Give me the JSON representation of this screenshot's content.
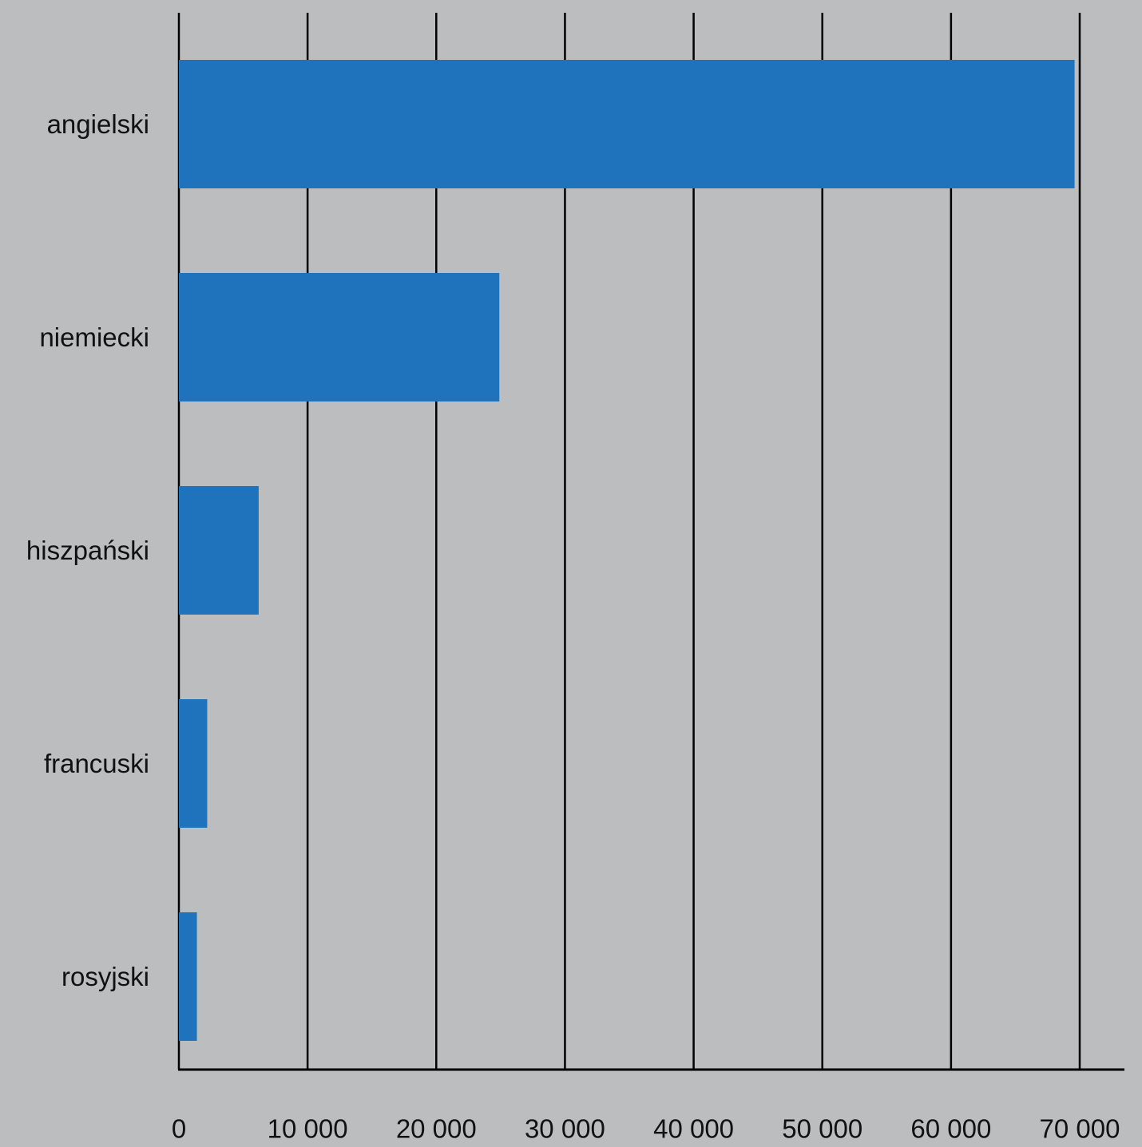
{
  "chart_data": {
    "type": "bar",
    "orientation": "horizontal",
    "categories": [
      "angielski",
      "niemiecki",
      "hiszpański",
      "francuski",
      "rosyjski"
    ],
    "values": [
      69600,
      24900,
      6200,
      2200,
      1400
    ],
    "xlim": [
      0,
      70000
    ],
    "xticks": [
      0,
      10000,
      20000,
      30000,
      40000,
      50000,
      60000,
      70000
    ],
    "xtick_labels": [
      "0",
      "10 000",
      "20 000",
      "30 000",
      "40 000",
      "50 000",
      "60 000",
      "70 000"
    ],
    "grid": "vertical",
    "legend": "none",
    "title": "",
    "xlabel": "",
    "ylabel": ""
  },
  "colors": {
    "bar": "#1f73bd",
    "background": "#bcbdbf",
    "grid": "#000000",
    "text": "#111111"
  }
}
